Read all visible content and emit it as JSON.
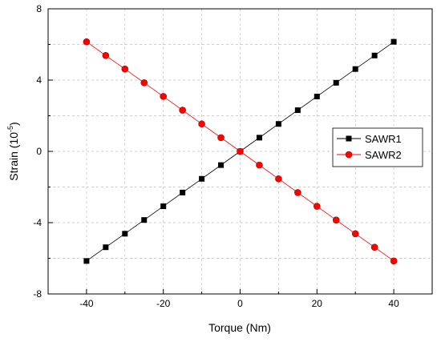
{
  "chart_data": {
    "type": "line",
    "xlabel": "Torque (Nm)",
    "ylabel_main": "Strain (10",
    "ylabel_sup": "-5",
    "ylabel_close": ")",
    "xlim": [
      -50,
      50
    ],
    "ylim": [
      -8,
      8
    ],
    "x_ticks": [
      -40,
      -20,
      0,
      20,
      40
    ],
    "y_ticks": [
      -8,
      -4,
      0,
      4,
      8
    ],
    "grid": true,
    "legend_position": "right",
    "x": [
      -40,
      -35,
      -30,
      -25,
      -20,
      -15,
      -10,
      -5,
      0,
      5,
      10,
      15,
      20,
      25,
      30,
      35,
      40
    ],
    "series": [
      {
        "name": "SAWR1",
        "marker": "square",
        "color": "#000000",
        "values": [
          -6.15,
          -5.38,
          -4.62,
          -3.85,
          -3.08,
          -2.31,
          -1.54,
          -0.77,
          0,
          0.77,
          1.54,
          2.31,
          3.08,
          3.85,
          4.62,
          5.38,
          6.15
        ]
      },
      {
        "name": "SAWR2",
        "marker": "circle",
        "color": "#ff0000",
        "values": [
          6.15,
          5.38,
          4.62,
          3.85,
          3.08,
          2.31,
          1.54,
          0.77,
          0,
          -0.77,
          -1.54,
          -2.31,
          -3.08,
          -3.85,
          -4.62,
          -5.38,
          -6.15
        ]
      }
    ]
  }
}
